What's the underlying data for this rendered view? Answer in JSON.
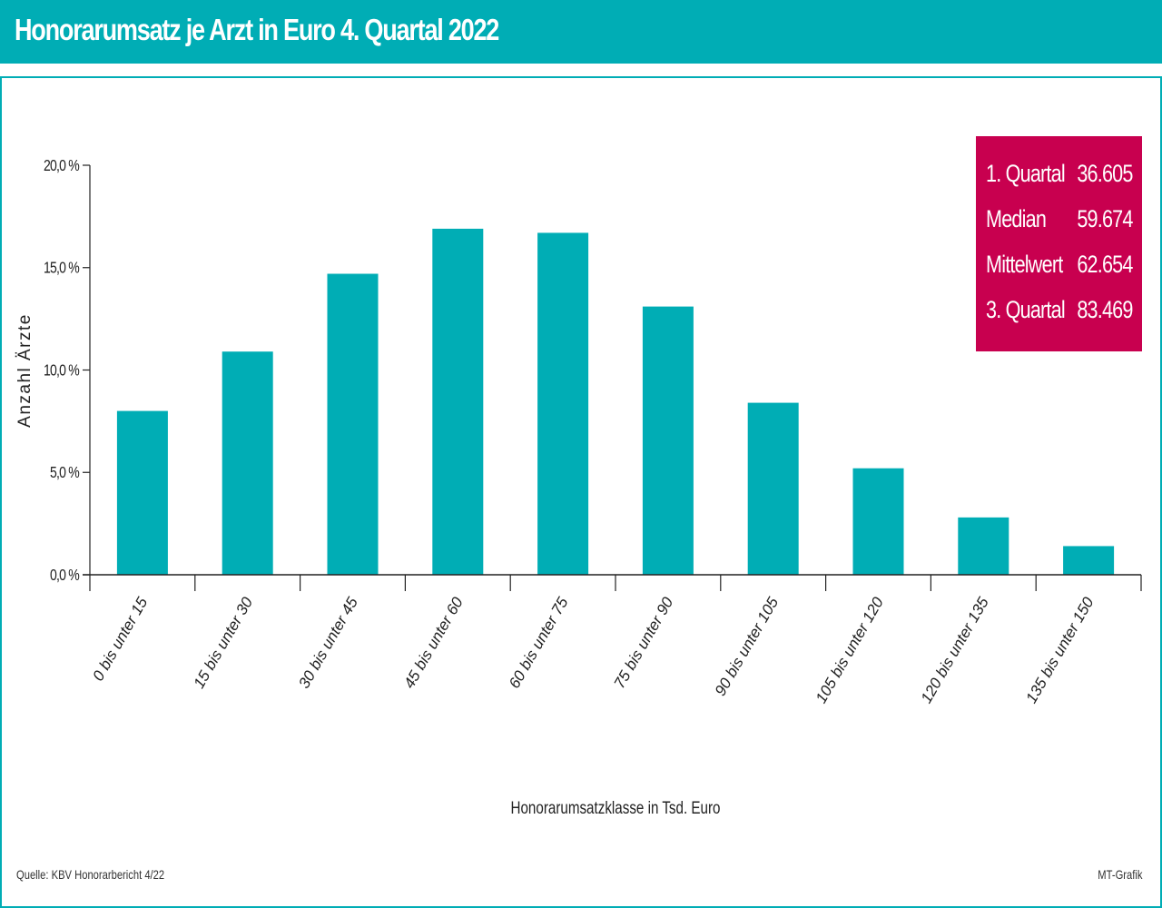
{
  "header": {
    "title": "Honorarumsatz je Arzt in Euro 4. Quartal 2022"
  },
  "legend": [
    {
      "label": "1. Quartal",
      "value": "36.605"
    },
    {
      "label": "Median",
      "value": "59.674"
    },
    {
      "label": "Mittelwert",
      "value": "62.654"
    },
    {
      "label": "3. Quartal",
      "value": "83.469"
    }
  ],
  "footer": {
    "source": "Quelle: KBV Honorarbericht 4/22",
    "credit": "MT-Grafik"
  },
  "colors": {
    "bar": "#00adb5",
    "header": "#00adb5",
    "legend": "#c8004f"
  },
  "chart_data": {
    "type": "bar",
    "title": "Honorarumsatz je Arzt in Euro 4. Quartal 2022",
    "xlabel": "Honorarumsatzklasse in Tsd. Euro",
    "ylabel": "Anzahl Ärzte",
    "ylim": [
      0,
      20
    ],
    "yticks": [
      0,
      5,
      10,
      15,
      20
    ],
    "ytick_labels": [
      "0,0 %",
      "5,0 %",
      "10,0 %",
      "15,0 %",
      "20,0 %"
    ],
    "categories": [
      "0 bis unter 15",
      "15 bis unter 30",
      "30 bis unter 45",
      "45 bis unter 60",
      "60 bis unter 75",
      "75 bis unter 90",
      "90 bis unter 105",
      "105 bis unter 120",
      "120 bis unter 135",
      "135 bis unter 150"
    ],
    "values": [
      8.0,
      10.9,
      14.7,
      16.9,
      16.7,
      13.1,
      8.4,
      5.2,
      2.8,
      1.4
    ]
  }
}
